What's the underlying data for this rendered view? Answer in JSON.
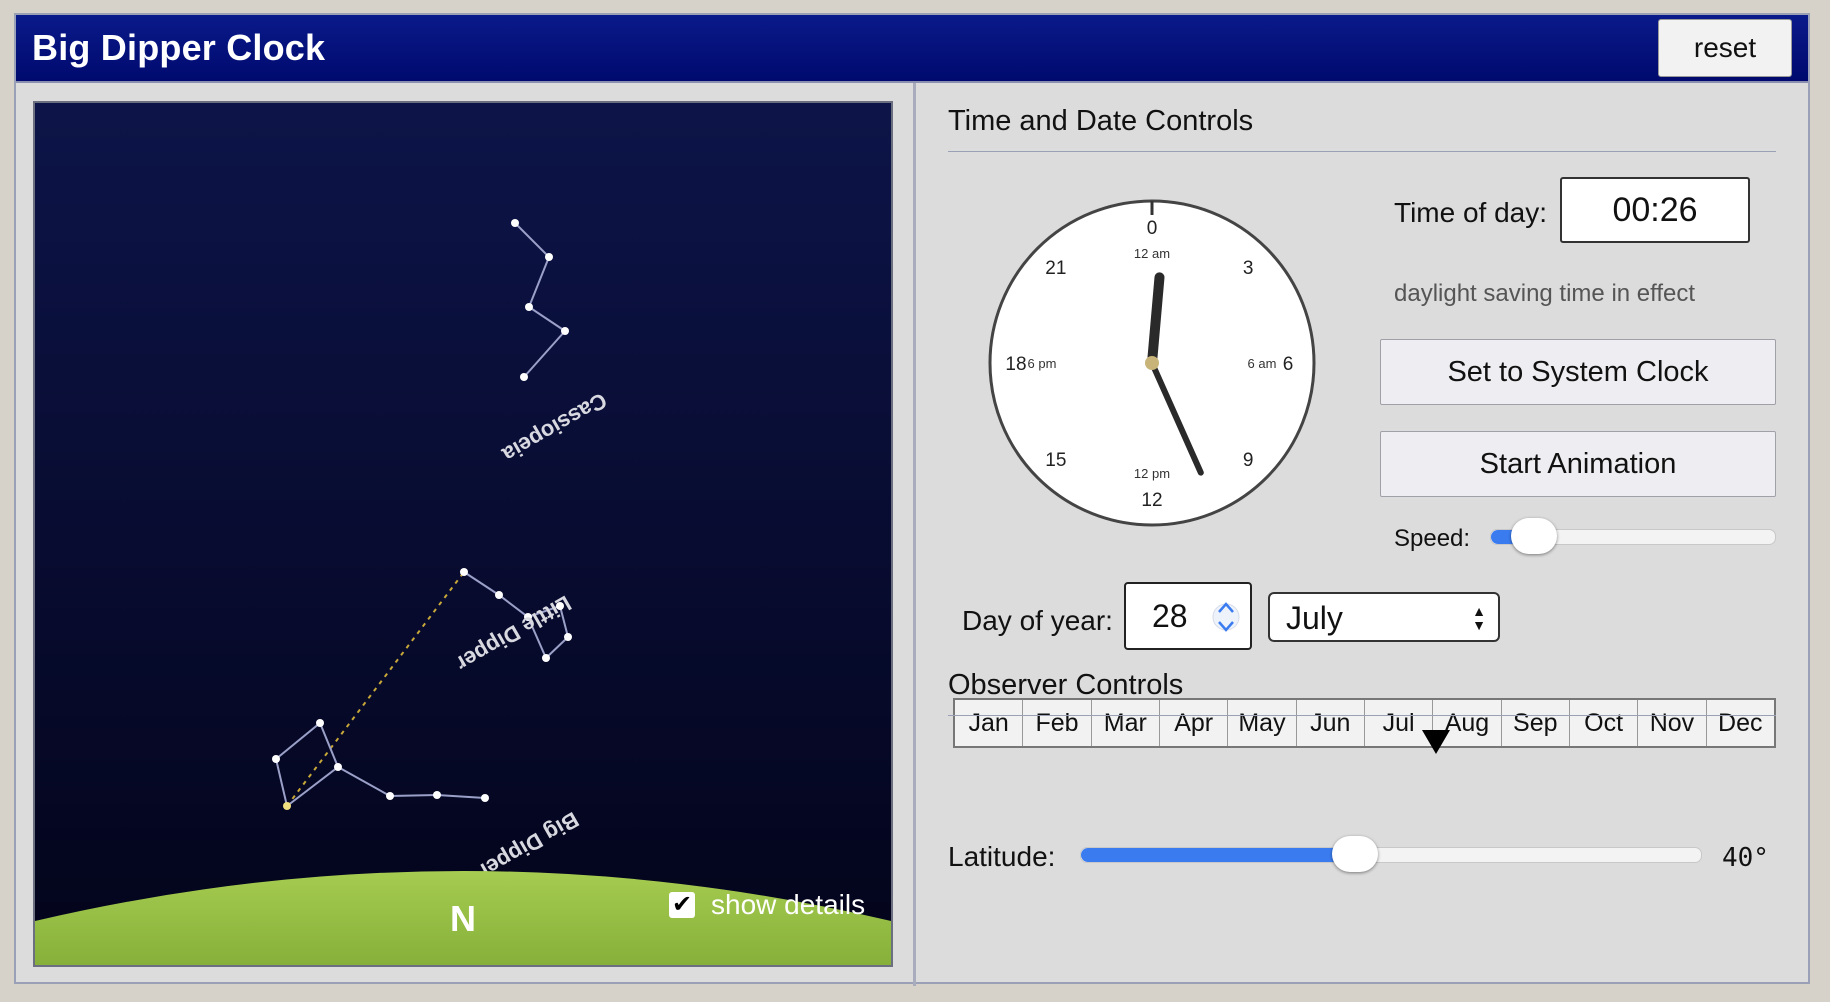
{
  "app": {
    "title": "Big Dipper Clock",
    "reset_label": "reset"
  },
  "sky": {
    "labels": {
      "cassiopeia": "Cassiopeia",
      "little_dipper": "Little Dipper",
      "big_dipper": "Big Dipper"
    },
    "direction": "N",
    "show_details_label": "show details",
    "show_details_checked": true,
    "colors": {
      "sky": "#05062e",
      "ground": "#a6cc50",
      "pointer_line": "#c8a838"
    }
  },
  "time_controls": {
    "section_title": "Time and Date Controls",
    "time_label": "Time of day:",
    "time_value": "00:26",
    "dst_note": "daylight saving time in effect",
    "system_clock_label": "Set to System Clock",
    "animation_label": "Start Animation",
    "speed_label": "Speed:",
    "speed_fraction": 0.15,
    "clock": {
      "hours24": [
        "0",
        "3",
        "6",
        "9",
        "12",
        "15",
        "18",
        "21"
      ],
      "inner_labels": [
        "12 am",
        "6 am",
        "12 pm",
        "6 pm"
      ],
      "hour_hand_deg": 5,
      "minute_hand_deg": 156,
      "hub_color": "#c8b478"
    },
    "day_label": "Day of year:",
    "day_value": "28",
    "month_value": "July",
    "months": [
      "Jan",
      "Feb",
      "Mar",
      "Apr",
      "May",
      "Jun",
      "Jul",
      "Aug",
      "Sep",
      "Oct",
      "Nov",
      "Dec"
    ],
    "month_marker_position": 0.587
  },
  "observer_controls": {
    "section_title": "Observer Controls",
    "latitude_label": "Latitude:",
    "latitude_value": "40°",
    "latitude_fraction": 0.44
  },
  "icons": [
    "checkmark-icon",
    "stepper-up-icon",
    "stepper-down-icon",
    "select-arrows-icon",
    "month-marker-icon"
  ]
}
